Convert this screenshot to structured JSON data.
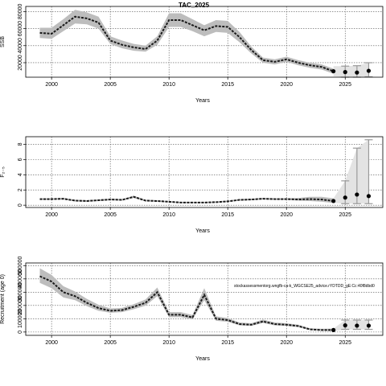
{
  "figure_title": "TAC_2025",
  "note_text": "stockassessmentorg.wngfb-ca-k_WGCSE25_advice.rYDTDD_gE:Cc:40f8dbd0",
  "colors": {
    "band": "#bdbdbd",
    "line": "#1a1a1a",
    "proj": "#999999",
    "grid": "#555555"
  },
  "chart_data": [
    {
      "type": "line",
      "title": "TAC_2025",
      "ylabel": "SSB",
      "xlabel": "Years",
      "xlim": [
        1997.8,
        2028.2
      ],
      "ylim": [
        3000,
        86000
      ],
      "xticks": [
        2000,
        2005,
        2010,
        2015,
        2020,
        2025
      ],
      "yticks": [
        20000,
        40000,
        60000,
        80000
      ],
      "ytick_labels": [
        "20000",
        "40000",
        "60000",
        "80000"
      ],
      "grid": true,
      "series": [
        {
          "x": [
            1999,
            2000,
            2001,
            2002,
            2003,
            2004,
            2005,
            2006,
            2007,
            2008,
            2009,
            2010,
            2011,
            2012,
            2013,
            2014,
            2015,
            2016,
            2017,
            2018,
            2019,
            2020,
            2021,
            2022,
            2023,
            2024
          ],
          "values": [
            55000,
            54000,
            64000,
            74000,
            72000,
            67000,
            46000,
            41000,
            38000,
            36000,
            46000,
            70000,
            70000,
            64000,
            58000,
            63000,
            62000,
            50000,
            35000,
            23000,
            21000,
            24000,
            20000,
            17000,
            15000,
            10000
          ],
          "lower": [
            49000,
            48000,
            57000,
            66000,
            65000,
            60000,
            42000,
            37000,
            34000,
            33000,
            41000,
            62000,
            62000,
            57000,
            51000,
            56000,
            55000,
            44000,
            31000,
            20000,
            18000,
            21000,
            17000,
            14000,
            12000,
            7000
          ],
          "upper": [
            61000,
            61000,
            71000,
            82000,
            79000,
            74000,
            51000,
            46000,
            42000,
            40000,
            51000,
            78000,
            78000,
            71000,
            64000,
            70000,
            69000,
            56000,
            39000,
            26000,
            24000,
            27000,
            23000,
            20000,
            18000,
            13000
          ]
        }
      ],
      "projection": {
        "x": [
          2024,
          2025,
          2026,
          2027
        ],
        "values": [
          10000,
          9000,
          8500,
          10500
        ],
        "lower": [
          4000,
          3000,
          3000,
          3500
        ],
        "upper": [
          16000,
          16000,
          16500,
          20000
        ]
      }
    },
    {
      "type": "line",
      "ylabel": "F₂₋₅",
      "xlabel": "Years",
      "xlim": [
        1997.8,
        2028.2
      ],
      "ylim": [
        -0.3,
        9.0
      ],
      "xticks": [
        2000,
        2005,
        2010,
        2015,
        2020,
        2025
      ],
      "yticks": [
        0,
        2,
        4,
        6,
        8
      ],
      "ytick_labels": [
        "0",
        "2",
        "4",
        "6",
        "8"
      ],
      "grid": true,
      "series": [
        {
          "x": [
            1999,
            2000,
            2001,
            2002,
            2003,
            2004,
            2005,
            2006,
            2007,
            2008,
            2009,
            2010,
            2011,
            2012,
            2013,
            2014,
            2015,
            2016,
            2017,
            2018,
            2019,
            2020,
            2021,
            2022,
            2023,
            2024
          ],
          "values": [
            0.8,
            0.8,
            0.85,
            0.6,
            0.55,
            0.65,
            0.75,
            0.7,
            1.1,
            0.6,
            0.55,
            0.45,
            0.35,
            0.35,
            0.35,
            0.4,
            0.5,
            0.7,
            0.75,
            0.85,
            0.8,
            0.8,
            0.75,
            0.8,
            0.75,
            0.55
          ],
          "lower": [
            0.7,
            0.7,
            0.75,
            0.5,
            0.45,
            0.55,
            0.65,
            0.6,
            0.95,
            0.5,
            0.45,
            0.38,
            0.28,
            0.28,
            0.28,
            0.32,
            0.42,
            0.6,
            0.65,
            0.75,
            0.7,
            0.7,
            0.6,
            0.55,
            0.45,
            0.3
          ],
          "upper": [
            0.9,
            0.9,
            0.95,
            0.7,
            0.65,
            0.75,
            0.85,
            0.8,
            1.25,
            0.7,
            0.65,
            0.52,
            0.42,
            0.42,
            0.42,
            0.48,
            0.58,
            0.8,
            0.85,
            0.95,
            0.9,
            0.9,
            0.95,
            1.1,
            1.1,
            0.9
          ]
        }
      ],
      "projection": {
        "x": [
          2024,
          2025,
          2026,
          2027
        ],
        "values": [
          0.55,
          1.0,
          1.4,
          1.2
        ],
        "lower": [
          0.3,
          0.2,
          0.2,
          0.2
        ],
        "upper": [
          0.9,
          3.2,
          7.5,
          8.6
        ]
      }
    },
    {
      "type": "line",
      "ylabel": "Recruitment (age 0)",
      "xlabel": "Years",
      "xlim": [
        1997.8,
        2028.2
      ],
      "ylim": [
        -25000,
        520000
      ],
      "xticks": [
        2000,
        2005,
        2010,
        2015,
        2020,
        2025
      ],
      "yticks": [
        0,
        100000,
        200000,
        300000,
        400000,
        500000
      ],
      "ytick_labels": [
        "0",
        "100000",
        "200000",
        "300000",
        "400000",
        "500000"
      ],
      "grid": true,
      "series": [
        {
          "x": [
            1999,
            2000,
            2001,
            2002,
            2003,
            2004,
            2005,
            2006,
            2007,
            2008,
            2009,
            2010,
            2011,
            2012,
            2013,
            2014,
            2015,
            2016,
            2017,
            2018,
            2019,
            2020,
            2021,
            2022,
            2023,
            2024
          ],
          "values": [
            420000,
            380000,
            300000,
            270000,
            220000,
            180000,
            160000,
            165000,
            190000,
            220000,
            300000,
            130000,
            130000,
            110000,
            280000,
            100000,
            90000,
            60000,
            55000,
            80000,
            60000,
            55000,
            45000,
            20000,
            15000,
            15000
          ],
          "lower": [
            370000,
            330000,
            260000,
            240000,
            195000,
            160000,
            145000,
            150000,
            172000,
            198000,
            270000,
            112000,
            112000,
            95000,
            240000,
            85000,
            77000,
            50000,
            46000,
            68000,
            50000,
            46000,
            37000,
            14000,
            8000,
            6000
          ],
          "upper": [
            480000,
            430000,
            345000,
            305000,
            250000,
            205000,
            178000,
            182000,
            210000,
            245000,
            335000,
            150000,
            150000,
            128000,
            330000,
            118000,
            105000,
            72000,
            66000,
            94000,
            72000,
            66000,
            55000,
            28000,
            24000,
            26000
          ]
        }
      ],
      "projection": {
        "x": [
          2024,
          2025,
          2026,
          2027
        ],
        "values": [
          15000,
          50000,
          48000,
          48000
        ],
        "lower": [
          6000,
          20000,
          20000,
          20000
        ],
        "upper": [
          26000,
          90000,
          90000,
          90000
        ]
      }
    }
  ]
}
